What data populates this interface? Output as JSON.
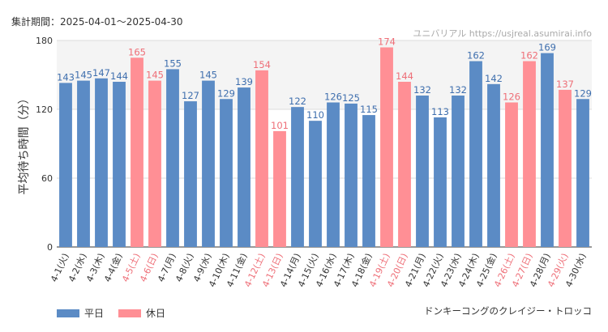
{
  "header": {
    "period": "集計期間：2025-04-01～2025-04-30",
    "watermark": "ユニバリアル  https://usjreal.asumirai.info"
  },
  "footer": {
    "attraction": "ドンキーコングのクレイジー・トロッコ"
  },
  "colors": {
    "weekday": "#5b8bc5",
    "holiday": "#ff8f95",
    "weekday_label": "#3f6fae",
    "holiday_label": "#ee6f78",
    "grid": "#dddddd"
  },
  "legend": [
    {
      "name": "平日",
      "color": "#5b8bc5"
    },
    {
      "name": "休日",
      "color": "#ff8f95"
    }
  ],
  "chart_data": {
    "type": "bar",
    "ylabel": "平均待ち時間（分）",
    "ylim": [
      0,
      180
    ],
    "yticks": [
      "0",
      "60",
      "120",
      "180"
    ],
    "grid": true,
    "legend_position": "bottom-left",
    "categories": [
      "4-1(火)",
      "4-2(水)",
      "4-3(木)",
      "4-4(金)",
      "4-5(土)",
      "4-6(日)",
      "4-7(月)",
      "4-8(火)",
      "4-9(水)",
      "4-10(木)",
      "4-11(金)",
      "4-12(土)",
      "4-13(日)",
      "4-14(月)",
      "4-15(火)",
      "4-16(水)",
      "4-17(木)",
      "4-18(金)",
      "4-19(土)",
      "4-20(日)",
      "4-21(月)",
      "4-22(火)",
      "4-23(水)",
      "4-24(木)",
      "4-25(金)",
      "4-26(土)",
      "4-27(日)",
      "4-28(月)",
      "4-29(火)",
      "4-30(水)"
    ],
    "values": [
      143,
      145,
      147,
      144,
      165,
      145,
      155,
      127,
      145,
      129,
      139,
      154,
      101,
      122,
      110,
      126,
      125,
      115,
      174,
      144,
      132,
      113,
      132,
      162,
      142,
      126,
      162,
      169,
      137,
      129
    ],
    "day_type": [
      "平日",
      "平日",
      "平日",
      "平日",
      "休日",
      "休日",
      "平日",
      "平日",
      "平日",
      "平日",
      "平日",
      "休日",
      "休日",
      "平日",
      "平日",
      "平日",
      "平日",
      "平日",
      "休日",
      "休日",
      "平日",
      "平日",
      "平日",
      "平日",
      "平日",
      "休日",
      "休日",
      "平日",
      "休日",
      "平日"
    ]
  }
}
